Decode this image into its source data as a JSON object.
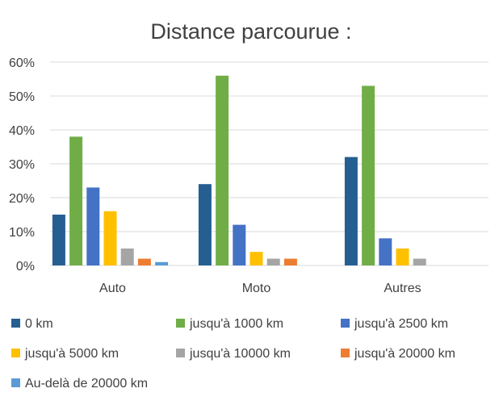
{
  "chart_data": {
    "type": "bar",
    "title": "Distance parcourue :",
    "xlabel": "",
    "ylabel": "",
    "categories": [
      "Auto",
      "Moto",
      "Autres"
    ],
    "ylim": [
      0,
      60
    ],
    "yticks": [
      0,
      10,
      20,
      30,
      40,
      50,
      60
    ],
    "ytick_labels": [
      "0%",
      "10%",
      "20%",
      "30%",
      "40%",
      "50%",
      "60%"
    ],
    "grid": true,
    "legend_position": "bottom",
    "series": [
      {
        "name": "0 km",
        "color": "#255E91",
        "values": [
          15,
          24,
          32
        ]
      },
      {
        "name": "jusqu'à 1000 km",
        "color": "#70AD47",
        "values": [
          38,
          56,
          53
        ]
      },
      {
        "name": "jusqu'à 2500 km",
        "color": "#4472C4",
        "values": [
          23,
          12,
          8
        ]
      },
      {
        "name": "jusqu'à 5000 km",
        "color": "#FFC000",
        "values": [
          16,
          4,
          5
        ]
      },
      {
        "name": "jusqu'à 10000 km",
        "color": "#A5A5A5",
        "values": [
          5,
          2,
          2
        ]
      },
      {
        "name": "jusqu'à 20000 km",
        "color": "#ED7D31",
        "values": [
          2,
          2,
          0
        ]
      },
      {
        "name": "Au-delà de 20000 km",
        "color": "#5B9BD5",
        "values": [
          1,
          0,
          0
        ]
      }
    ]
  }
}
